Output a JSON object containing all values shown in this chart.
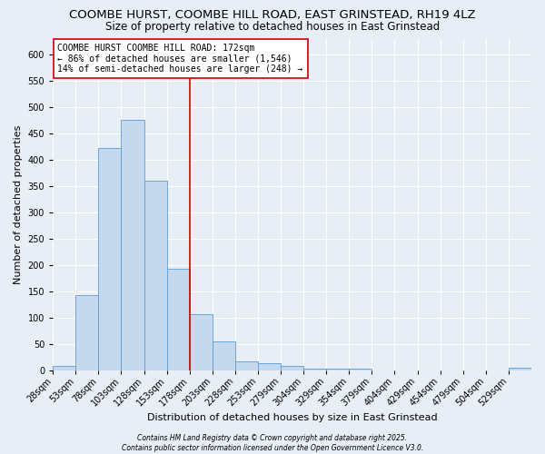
{
  "title1": "COOMBE HURST, COOMBE HILL ROAD, EAST GRINSTEAD, RH19 4LZ",
  "title2": "Size of property relative to detached houses in East Grinstead",
  "xlabel": "Distribution of detached houses by size in East Grinstead",
  "ylabel": "Number of detached properties",
  "bin_labels": [
    "28sqm",
    "53sqm",
    "78sqm",
    "103sqm",
    "128sqm",
    "153sqm",
    "178sqm",
    "203sqm",
    "228sqm",
    "253sqm",
    "279sqm",
    "304sqm",
    "329sqm",
    "354sqm",
    "379sqm",
    "404sqm",
    "429sqm",
    "454sqm",
    "479sqm",
    "504sqm",
    "529sqm"
  ],
  "bar_heights": [
    8,
    142,
    422,
    475,
    360,
    192,
    107,
    54,
    17,
    13,
    8,
    3,
    2,
    3,
    0,
    0,
    0,
    0,
    0,
    0,
    4
  ],
  "bar_color": "#c5d8ee",
  "bar_edge_color": "#5b9bd5",
  "vline_position": 6,
  "vline_color": "#cc0000",
  "annotation_text": "COOMBE HURST COOMBE HILL ROAD: 172sqm\n← 86% of detached houses are smaller (1,546)\n14% of semi-detached houses are larger (248) →",
  "annotation_box_color": "#ffffff",
  "annotation_box_edge": "#cc0000",
  "ylim": [
    0,
    630
  ],
  "yticks": [
    0,
    50,
    100,
    150,
    200,
    250,
    300,
    350,
    400,
    450,
    500,
    550,
    600
  ],
  "bg_color": "#e8eef5",
  "grid_color": "#ffffff",
  "footer_text": "Contains HM Land Registry data © Crown copyright and database right 2025.\nContains public sector information licensed under the Open Government Licence V3.0.",
  "title_fontsize": 9.5,
  "subtitle_fontsize": 8.5,
  "axis_label_fontsize": 8,
  "tick_fontsize": 7,
  "annotation_fontsize": 7
}
